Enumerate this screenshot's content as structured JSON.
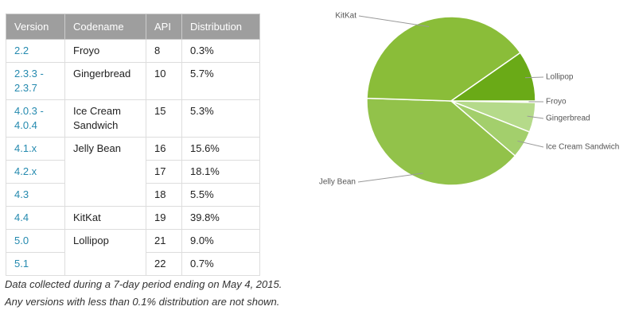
{
  "table": {
    "header": [
      "Version",
      "Codename",
      "API",
      "Distribution"
    ],
    "groups": [
      {
        "codename": "Froyo",
        "versions": [
          {
            "version": "2.2",
            "api": 8,
            "distribution": "0.3%"
          }
        ]
      },
      {
        "codename": "Gingerbread",
        "versions": [
          {
            "version": "2.3.3 - 2.3.7",
            "api": 10,
            "distribution": "5.7%"
          }
        ]
      },
      {
        "codename": "Ice Cream Sandwich",
        "versions": [
          {
            "version": "4.0.3 - 4.0.4",
            "api": 15,
            "distribution": "5.3%"
          }
        ]
      },
      {
        "codename": "Jelly Bean",
        "versions": [
          {
            "version": "4.1.x",
            "api": 16,
            "distribution": "15.6%"
          },
          {
            "version": "4.2.x",
            "api": 17,
            "distribution": "18.1%"
          },
          {
            "version": "4.3",
            "api": 18,
            "distribution": "5.5%"
          }
        ]
      },
      {
        "codename": "KitKat",
        "versions": [
          {
            "version": "4.4",
            "api": 19,
            "distribution": "39.8%"
          }
        ]
      },
      {
        "codename": "Lollipop",
        "versions": [
          {
            "version": "5.0",
            "api": 21,
            "distribution": "9.0%"
          },
          {
            "version": "5.1",
            "api": 22,
            "distribution": "0.7%"
          }
        ]
      }
    ]
  },
  "footnote": [
    "Data collected during a 7-day period ending on May 4, 2015.",
    "Any versions with less than 0.1% distribution are not shown."
  ],
  "chart_data": {
    "type": "pie",
    "categories": [
      "Froyo",
      "Gingerbread",
      "Ice Cream Sandwich",
      "Jelly Bean",
      "KitKat",
      "Lollipop"
    ],
    "values": [
      0.3,
      5.7,
      5.3,
      39.2,
      39.8,
      9.7
    ],
    "colors": [
      "#c5e3a4",
      "#b5da8a",
      "#a3cf6c",
      "#92c24a",
      "#8abd39",
      "#6aaa17"
    ]
  }
}
